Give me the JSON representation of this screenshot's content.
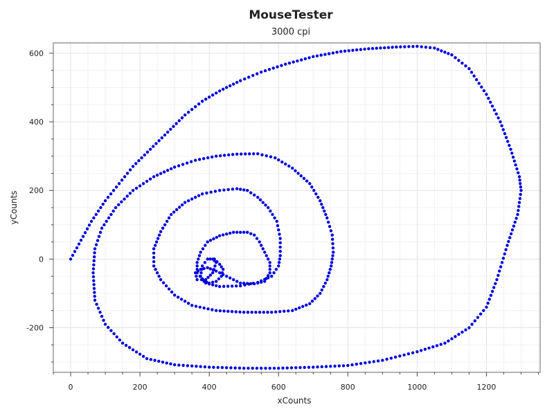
{
  "chart_data": {
    "type": "scatter",
    "title": "MouseTester",
    "subtitle": "3000 cpi",
    "xlabel": "xCounts",
    "ylabel": "yCounts",
    "xlim": [
      -50,
      1355
    ],
    "ylim": [
      -330,
      630
    ],
    "xticks": [
      0,
      200,
      400,
      600,
      800,
      1000,
      1200
    ],
    "yticks": [
      -200,
      0,
      200,
      400,
      600
    ],
    "xtick_labels": [
      "0",
      "200",
      "400",
      "600",
      "800",
      "1000",
      "1200"
    ],
    "ytick_labels": [
      "-200",
      "0",
      "200",
      "400",
      "600"
    ],
    "grid": true,
    "marker_color": "#0000dd",
    "series": [
      {
        "points": [
          [
            0,
            0
          ],
          [
            30,
            55
          ],
          [
            60,
            110
          ],
          [
            100,
            170
          ],
          [
            140,
            220
          ],
          [
            180,
            270
          ],
          [
            230,
            320
          ],
          [
            280,
            370
          ],
          [
            330,
            420
          ],
          [
            380,
            460
          ],
          [
            430,
            490
          ],
          [
            490,
            520
          ],
          [
            550,
            545
          ],
          [
            620,
            568
          ],
          [
            700,
            590
          ],
          [
            780,
            605
          ],
          [
            860,
            613
          ],
          [
            940,
            618
          ],
          [
            1000,
            620
          ],
          [
            1050,
            615
          ],
          [
            1100,
            595
          ],
          [
            1150,
            555
          ],
          [
            1200,
            480
          ],
          [
            1240,
            400
          ],
          [
            1270,
            320
          ],
          [
            1295,
            240
          ],
          [
            1300,
            200
          ],
          [
            1290,
            130
          ],
          [
            1260,
            40
          ],
          [
            1230,
            -60
          ],
          [
            1200,
            -140
          ],
          [
            1150,
            -200
          ],
          [
            1080,
            -245
          ],
          [
            1000,
            -270
          ],
          [
            900,
            -295
          ],
          [
            800,
            -310
          ],
          [
            700,
            -315
          ],
          [
            600,
            -318
          ],
          [
            500,
            -318
          ],
          [
            400,
            -315
          ],
          [
            300,
            -308
          ],
          [
            220,
            -290
          ],
          [
            150,
            -245
          ],
          [
            100,
            -190
          ],
          [
            70,
            -120
          ],
          [
            65,
            -40
          ],
          [
            70,
            30
          ],
          [
            90,
            90
          ],
          [
            130,
            150
          ],
          [
            180,
            200
          ],
          [
            240,
            240
          ],
          [
            300,
            268
          ],
          [
            360,
            288
          ],
          [
            420,
            300
          ],
          [
            480,
            306
          ],
          [
            540,
            307
          ],
          [
            590,
            295
          ],
          [
            640,
            265
          ],
          [
            690,
            220
          ],
          [
            720,
            170
          ],
          [
            740,
            120
          ],
          [
            755,
            70
          ],
          [
            758,
            20
          ],
          [
            752,
            -20
          ],
          [
            740,
            -60
          ],
          [
            720,
            -100
          ],
          [
            690,
            -130
          ],
          [
            640,
            -150
          ],
          [
            580,
            -155
          ],
          [
            500,
            -155
          ],
          [
            420,
            -150
          ],
          [
            350,
            -135
          ],
          [
            300,
            -105
          ],
          [
            260,
            -60
          ],
          [
            240,
            -20
          ],
          [
            240,
            30
          ],
          [
            260,
            80
          ],
          [
            290,
            130
          ],
          [
            330,
            165
          ],
          [
            380,
            190
          ],
          [
            430,
            200
          ],
          [
            480,
            205
          ],
          [
            510,
            200
          ],
          [
            540,
            180
          ],
          [
            570,
            150
          ],
          [
            595,
            110
          ],
          [
            605,
            60
          ],
          [
            605,
            10
          ],
          [
            600,
            -20
          ],
          [
            580,
            -50
          ],
          [
            540,
            -68
          ],
          [
            490,
            -78
          ],
          [
            430,
            -80
          ],
          [
            390,
            -70
          ],
          [
            365,
            -40
          ],
          [
            365,
            -10
          ],
          [
            375,
            20
          ],
          [
            395,
            50
          ],
          [
            430,
            68
          ],
          [
            470,
            78
          ],
          [
            510,
            78
          ],
          [
            530,
            70
          ],
          [
            545,
            50
          ],
          [
            560,
            20
          ],
          [
            575,
            -10
          ],
          [
            575,
            -40
          ],
          [
            560,
            -65
          ],
          [
            530,
            -72
          ],
          [
            490,
            -70
          ],
          [
            450,
            -50
          ],
          [
            420,
            -35
          ],
          [
            395,
            -25
          ],
          [
            375,
            -30
          ],
          [
            360,
            -40
          ],
          [
            365,
            -60
          ],
          [
            390,
            -60
          ],
          [
            410,
            -40
          ],
          [
            420,
            -10
          ],
          [
            410,
            0
          ],
          [
            395,
            0
          ],
          [
            380,
            -20
          ],
          [
            375,
            -50
          ],
          [
            385,
            -65
          ],
          [
            400,
            -70
          ],
          [
            420,
            -65
          ],
          [
            435,
            -50
          ],
          [
            440,
            -30
          ],
          [
            430,
            -15
          ],
          [
            415,
            0
          ]
        ]
      }
    ]
  }
}
